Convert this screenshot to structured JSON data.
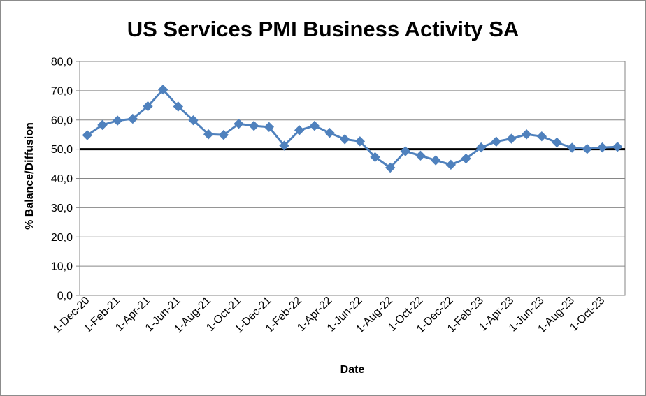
{
  "chart_data": {
    "type": "line",
    "title": "US Services PMI Business Activity SA",
    "xlabel": "Date",
    "ylabel": "% Balance/Diffusion",
    "ylim": [
      0,
      80
    ],
    "yticks": [
      "0,0",
      "10,0",
      "20,0",
      "30,0",
      "40,0",
      "50,0",
      "60,0",
      "70,0",
      "80,0"
    ],
    "grid": "horizontal",
    "reference_line": 50,
    "x": [
      "1-Dec-20",
      "1-Jan-21",
      "1-Feb-21",
      "1-Mar-21",
      "1-Apr-21",
      "1-May-21",
      "1-Jun-21",
      "1-Jul-21",
      "1-Aug-21",
      "1-Sep-21",
      "1-Oct-21",
      "1-Nov-21",
      "1-Dec-21",
      "1-Jan-22",
      "1-Feb-22",
      "1-Mar-22",
      "1-Apr-22",
      "1-May-22",
      "1-Jun-22",
      "1-Jul-22",
      "1-Aug-22",
      "1-Sep-22",
      "1-Oct-22",
      "1-Nov-22",
      "1-Dec-22",
      "1-Jan-23",
      "1-Feb-23",
      "1-Mar-23",
      "1-Apr-23",
      "1-May-23",
      "1-Jun-23",
      "1-Jul-23",
      "1-Aug-23",
      "1-Sep-23",
      "1-Oct-23",
      "1-Nov-23"
    ],
    "xtick_labels": [
      "1-Dec-20",
      "1-Feb-21",
      "1-Apr-21",
      "1-Jun-21",
      "1-Aug-21",
      "1-Oct-21",
      "1-Dec-21",
      "1-Feb-22",
      "1-Apr-22",
      "1-Jun-22",
      "1-Aug-22",
      "1-Oct-22",
      "1-Dec-22",
      "1-Feb-23",
      "1-Apr-23",
      "1-Jun-23",
      "1-Aug-23",
      "1-Oct-23"
    ],
    "series": [
      {
        "color": "#4f81bd",
        "values": [
          54.8,
          58.3,
          59.8,
          60.4,
          64.7,
          70.4,
          64.6,
          59.9,
          55.1,
          54.9,
          58.7,
          58.0,
          57.6,
          51.2,
          56.5,
          58.0,
          55.6,
          53.4,
          52.7,
          47.3,
          43.7,
          49.3,
          47.8,
          46.2,
          44.7,
          46.8,
          50.6,
          52.6,
          53.6,
          55.1,
          54.4,
          52.3,
          50.5,
          50.1,
          50.6,
          50.8
        ]
      }
    ]
  }
}
